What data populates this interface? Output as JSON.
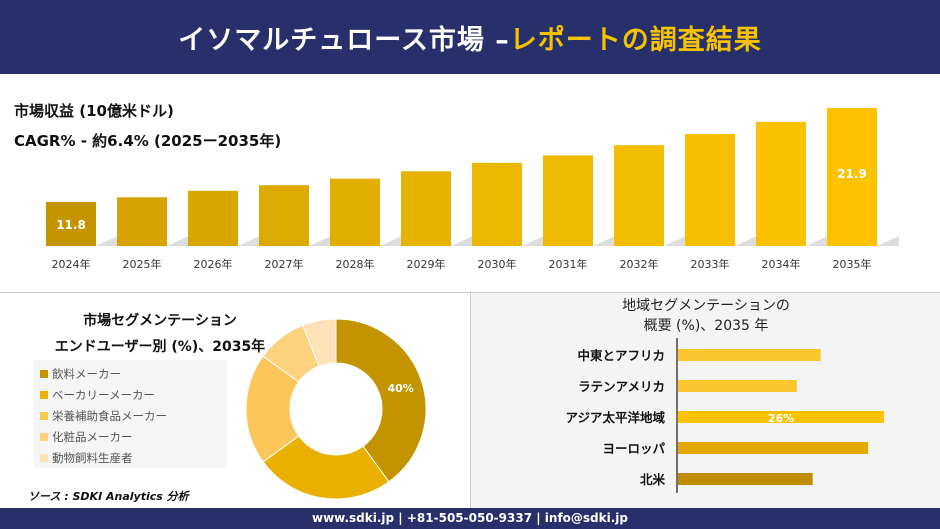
{
  "header": {
    "title_main": "イソマルチュロース市場 –",
    "title_accent": "レポートの調査結果"
  },
  "colors": {
    "navy": "#27306a",
    "accent": "#f5c200"
  },
  "chart_data": [
    {
      "type": "bar",
      "title": "市場収益 (10億米ドル)",
      "subtitle": "CAGR% - 約6.4% (2025ー2035年)",
      "categories": [
        "2024年",
        "2025年",
        "2026年",
        "2027年",
        "2028年",
        "2029年",
        "2030年",
        "2031年",
        "2032年",
        "2033年",
        "2034年",
        "2035年"
      ],
      "values": [
        11.8,
        12.3,
        13.0,
        13.6,
        14.3,
        15.1,
        16.0,
        16.8,
        17.9,
        19.1,
        20.4,
        21.9
      ],
      "data_labels": {
        "0": "11.8",
        "11": "21.9"
      }
    },
    {
      "type": "pie",
      "donut": true,
      "title": "市場セグメンテーション",
      "subtitle": "エンドユーザー別 (%)、2035年",
      "labels": [
        "飲料メーカー",
        "ベーカリーメーカー",
        "栄養補助食品メーカー",
        "化粧品メーカー",
        "動物飼料生産者"
      ],
      "values": [
        40,
        25,
        20,
        9,
        6
      ],
      "colors": [
        "#c39300",
        "#e9b000",
        "#fcc65a",
        "#fcd27e",
        "#fde2b8"
      ],
      "data_labels": {
        "0": "40%"
      },
      "legend": "left"
    },
    {
      "type": "bar",
      "orientation": "horizontal",
      "title": "地域セグメンテーションの",
      "subtitle": "概要 (%)、2035 年",
      "categories": [
        "中東とアフリカ",
        "ラテンアメリカ",
        "アジア太平洋地域",
        "ヨーロッパ",
        "北米"
      ],
      "values": [
        18,
        15,
        26,
        24,
        17
      ],
      "colors": [
        "#fcc72e",
        "#fcc72e",
        "#fcc200",
        "#e0a800",
        "#bf8e00"
      ],
      "data_labels": {
        "2": "26%"
      }
    }
  ],
  "source": "ソース : SDKI Analytics 分析",
  "footer": "www.sdki.jp | +81-505-050-9337 | info@sdki.jp"
}
